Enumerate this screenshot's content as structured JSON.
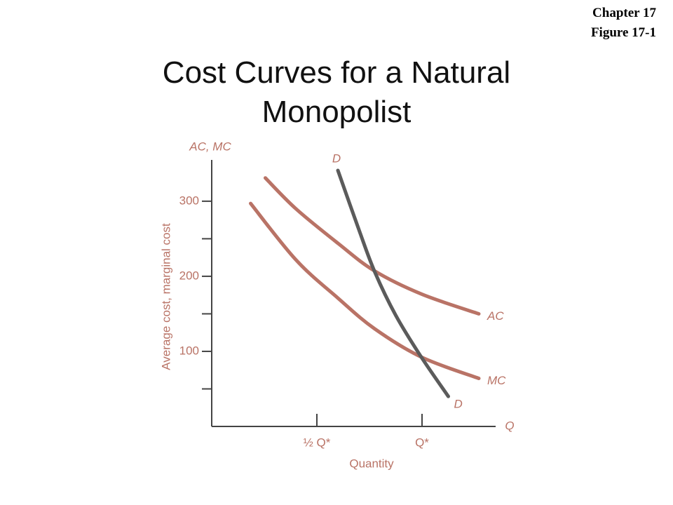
{
  "chapter": "Chapter 17",
  "figure": "Figure 17-1",
  "chart_data": {
    "type": "line",
    "title": "Cost Curves for a Natural Monopolist",
    "y_axis_top_label": "AC, MC",
    "ylabel": "Average cost, marginal cost",
    "x_axis_end_label": "Q",
    "xlabel": "Quantity",
    "xlim": [
      0,
      2.7
    ],
    "ylim": [
      0,
      355
    ],
    "xticks": [
      {
        "value": 1,
        "label": "½ Q*"
      },
      {
        "value": 2,
        "label": "Q*"
      }
    ],
    "yticks": [
      100,
      200,
      300
    ],
    "minor_yticks": [
      50,
      150,
      250
    ],
    "series": [
      {
        "name": "AC",
        "color": "#b97366",
        "x": [
          0.51,
          0.8,
          1.2,
          1.55,
          2.0,
          2.54
        ],
        "values": [
          331,
          290,
          244,
          207,
          176,
          150
        ]
      },
      {
        "name": "MC",
        "color": "#b97366",
        "x": [
          0.37,
          0.8,
          1.2,
          1.55,
          2.0,
          2.54
        ],
        "values": [
          297,
          222,
          171,
          130,
          92,
          64
        ]
      },
      {
        "name": "D",
        "color": "#5b5b5b",
        "x": [
          1.2,
          1.4,
          1.55,
          1.75,
          1.99,
          2.25
        ],
        "values": [
          341,
          262,
          206,
          148,
          93,
          40
        ]
      }
    ]
  }
}
